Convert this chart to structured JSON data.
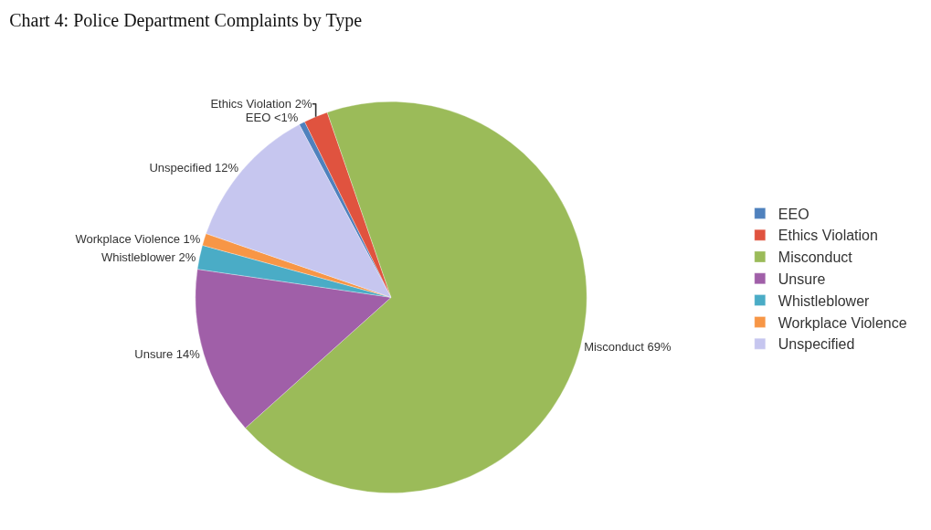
{
  "chart_data": {
    "type": "pie",
    "title": "Chart 4: Police Department Complaints by Type",
    "categories": [
      "EEO",
      "Ethics Violation",
      "Misconduct",
      "Unsure",
      "Whistleblower",
      "Workplace Violence",
      "Unspecified"
    ],
    "values": [
      0.5,
      2,
      69,
      14,
      2,
      1,
      12
    ],
    "value_labels": [
      "<1%",
      "2%",
      "69%",
      "14%",
      "2%",
      "1%",
      "12%"
    ],
    "colors": [
      "#4f81bd",
      "#e0533f",
      "#9bbb59",
      "#a05fa8",
      "#4aacc6",
      "#f79646",
      "#c6c6ef"
    ],
    "legend": "right"
  }
}
